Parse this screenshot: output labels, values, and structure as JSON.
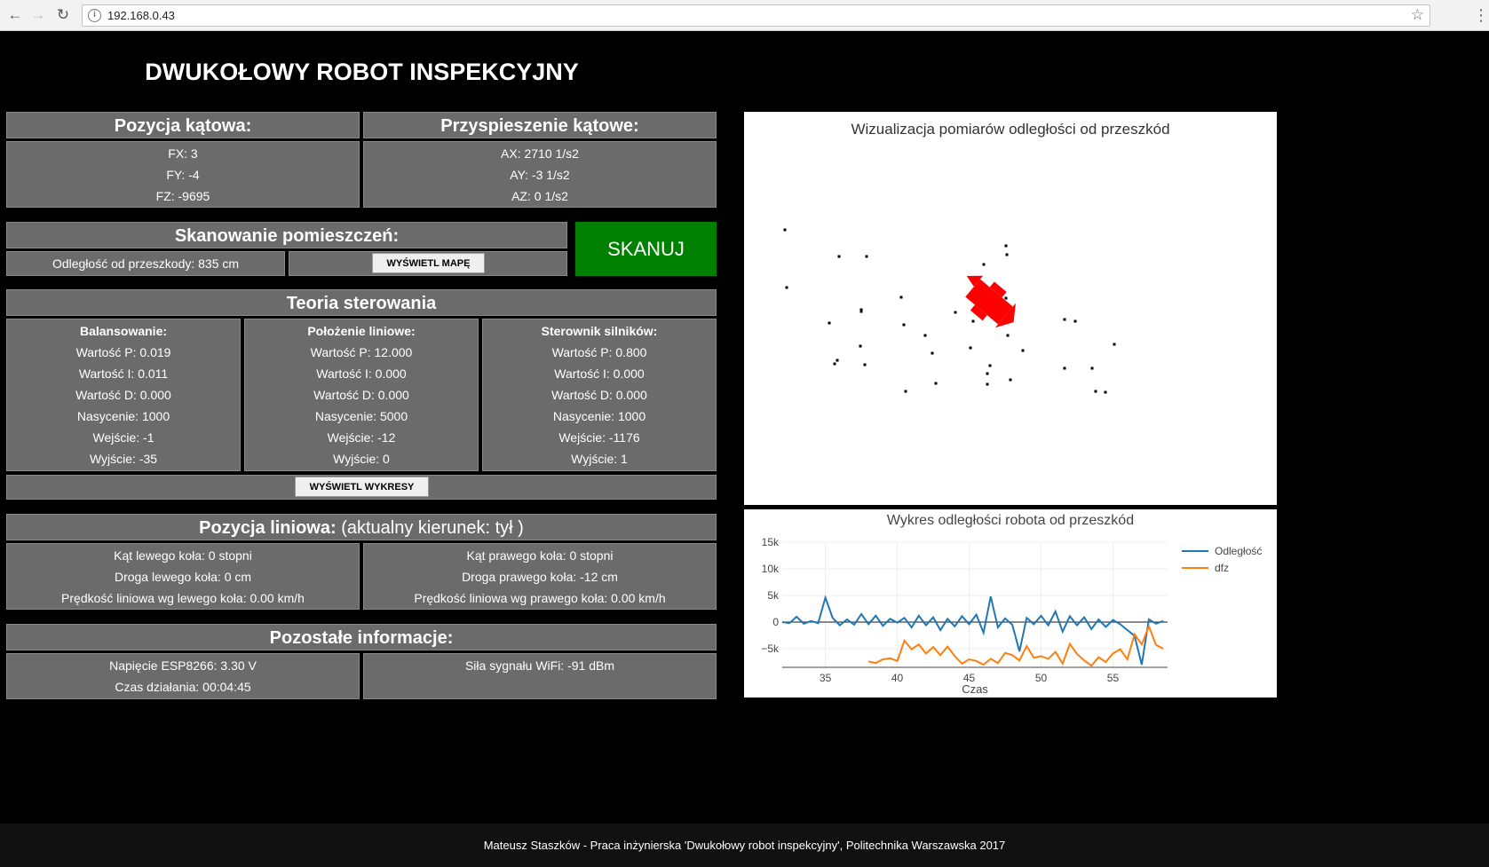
{
  "browser": {
    "url": "192.168.0.43"
  },
  "page_title": "DWUKOŁOWY ROBOT INSPEKCYJNY",
  "angular_position": {
    "title": "Pozycja kątowa:",
    "lines": [
      "FX: 3",
      "FY: -4",
      "FZ: -9695"
    ]
  },
  "angular_acceleration": {
    "title": "Przyspieszenie kątowe:",
    "lines": [
      "AX: 2710 1/s2",
      "AY: -3 1/s2",
      "AZ: 0 1/s2"
    ]
  },
  "scanning": {
    "title": "Skanowanie pomieszczeń:",
    "distance": "Odległość od przeszkody: 835 cm",
    "show_map_label": "WYŚWIETL MAPĘ",
    "scan_label": "SKANUJ"
  },
  "control": {
    "title": "Teoria sterowania",
    "columns": [
      {
        "title": "Balansowanie:",
        "lines": [
          "Wartość P: 0.019",
          "Wartość I: 0.011",
          "Wartość D: 0.000",
          "Nasycenie: 1000",
          "Wejście: -1",
          "Wyjście: -35"
        ]
      },
      {
        "title": "Położenie liniowe:",
        "lines": [
          "Wartość P: 12.000",
          "Wartość I: 0.000",
          "Wartość D: 0.000",
          "Nasycenie: 5000",
          "Wejście: -12",
          "Wyjście: 0"
        ]
      },
      {
        "title": "Sterownik silników:",
        "lines": [
          "Wartość P: 0.800",
          "Wartość I: 0.000",
          "Wartość D: 0.000",
          "Nasycenie: 1000",
          "Wejście: -1176",
          "Wyjście: 1"
        ]
      }
    ],
    "show_charts_label": "WYŚWIETL WYKRESY"
  },
  "linear_position": {
    "title": "Pozycja liniowa:",
    "direction": "(aktualny kierunek: tył )",
    "left": [
      "Kąt lewego koła: 0 stopni",
      "Droga lewego koła: 0 cm",
      "Prędkość liniowa wg lewego koła: 0.00 km/h"
    ],
    "right": [
      "Kąt prawego koła: 0 stopni",
      "Droga prawego koła: -12 cm",
      "Prędkość liniowa wg prawego koła: 0.00 km/h"
    ]
  },
  "other_info": {
    "title": "Pozostałe informacje:",
    "left": [
      "Napięcie ESP8266: 3.30 V",
      "Czas działania: 00:04:45"
    ],
    "right": [
      "Siła sygnału WiFi: -91 dBm"
    ]
  },
  "map": {
    "title": "Wizualizacja pomiarów odległości od przeszkód",
    "robot_color": "#ff0000",
    "robot_heading_deg": 40,
    "points": [
      [
        0,
        -72
      ],
      [
        107,
        -86
      ],
      [
        92,
        -59
      ],
      [
        61,
        -59
      ],
      [
        117,
        -32
      ],
      [
        -3,
        -22
      ],
      [
        -23,
        -56
      ],
      [
        -45,
        -36
      ],
      [
        -88,
        -42
      ],
      [
        -120,
        -10
      ],
      [
        -96,
        -22
      ],
      [
        -5,
        20
      ],
      [
        -26,
        -65
      ],
      [
        96,
        -85
      ],
      [
        73,
        -6
      ],
      [
        -62,
        4
      ],
      [
        -23,
        24
      ],
      [
        -4,
        69
      ],
      [
        -5,
        79
      ],
      [
        -30,
        58
      ],
      [
        -37,
        25
      ],
      [
        -44,
        22
      ],
      [
        -42,
        -6
      ],
      [
        -118,
        -85
      ],
      [
        -84,
        -76
      ],
      [
        -168,
        5
      ],
      [
        -164,
        -55
      ],
      [
        -123,
        21
      ],
      [
        14,
        -39
      ],
      [
        -26,
        -77
      ],
      [
        -198,
        -54
      ],
      [
        -195,
        -50
      ],
      [
        -162,
        67
      ],
      [
        -193,
        67
      ],
      [
        -254,
        97
      ],
      [
        -252,
        32
      ],
      [
        -204,
        -8
      ],
      [
        -169,
        -34
      ],
      [
        -168,
        7
      ],
      [
        61,
        -4
      ]
    ]
  },
  "chart_data": {
    "type": "line",
    "title": "Wykres odległości robota od przeszkód",
    "xlabel": "Czas",
    "ylabel": "",
    "xlim": [
      32,
      58.8
    ],
    "ylim": [
      -8500,
      15000
    ],
    "x_ticks": [
      35,
      40,
      45,
      50,
      55
    ],
    "y_ticks": [
      15000,
      10000,
      5000,
      0,
      -5000
    ],
    "y_tick_labels": [
      "15k",
      "10k",
      "5k",
      "0",
      "−5k"
    ],
    "grid": true,
    "legend": "right",
    "x": [
      32,
      32.5,
      33,
      33.5,
      34,
      34.5,
      35,
      35.5,
      36,
      36.5,
      37,
      37.5,
      38,
      38.5,
      39,
      39.5,
      40,
      40.5,
      41,
      41.5,
      42,
      42.5,
      43,
      43.5,
      44,
      44.5,
      45,
      45.5,
      46,
      46.5,
      47,
      47.5,
      48,
      48.5,
      49,
      49.5,
      50,
      50.5,
      51,
      51.5,
      52,
      52.5,
      53,
      53.5,
      54,
      54.5,
      55,
      55.5,
      56,
      56.5,
      57,
      57.5,
      58,
      58.5
    ],
    "series": [
      {
        "name": "Odległość",
        "color": "#1f77b4",
        "values": [
          0,
          -200,
          1000,
          -300,
          200,
          -200,
          4600,
          800,
          -600,
          500,
          -500,
          1500,
          -400,
          1200,
          -700,
          600,
          -100,
          800,
          -1000,
          1200,
          -600,
          900,
          -1500,
          600,
          -800,
          1100,
          -400,
          1400,
          -2000,
          4800,
          -1000,
          700,
          -500,
          -5500,
          800,
          -400,
          1200,
          -600,
          2000,
          -1800,
          1100,
          -600,
          900,
          -1300,
          500,
          -900,
          400,
          -400,
          -1500,
          -2600,
          -8000,
          500,
          -300,
          200
        ]
      },
      {
        "name": "dfz",
        "color": "#ff7f0e",
        "values": [
          null,
          null,
          null,
          null,
          null,
          null,
          null,
          null,
          null,
          null,
          null,
          null,
          -7400,
          -7700,
          -7000,
          -6800,
          -7300,
          -3500,
          -5100,
          -4200,
          -5900,
          -4700,
          -6200,
          -4600,
          -6400,
          -7800,
          -7000,
          -7300,
          -8000,
          -6900,
          -7700,
          -5800,
          -6200,
          -7200,
          -4500,
          -6700,
          -6400,
          -6900,
          -5600,
          -7800,
          -4100,
          -6000,
          -7200,
          -8200,
          -6600,
          -7500,
          -5900,
          -5100,
          -7000,
          -2300,
          -4200,
          -800,
          -4300,
          -5000
        ]
      }
    ]
  },
  "footer": "Mateusz Staszków - Praca inżynierska 'Dwukołowy robot inspekcyjny', Politechnika Warszawska 2017"
}
